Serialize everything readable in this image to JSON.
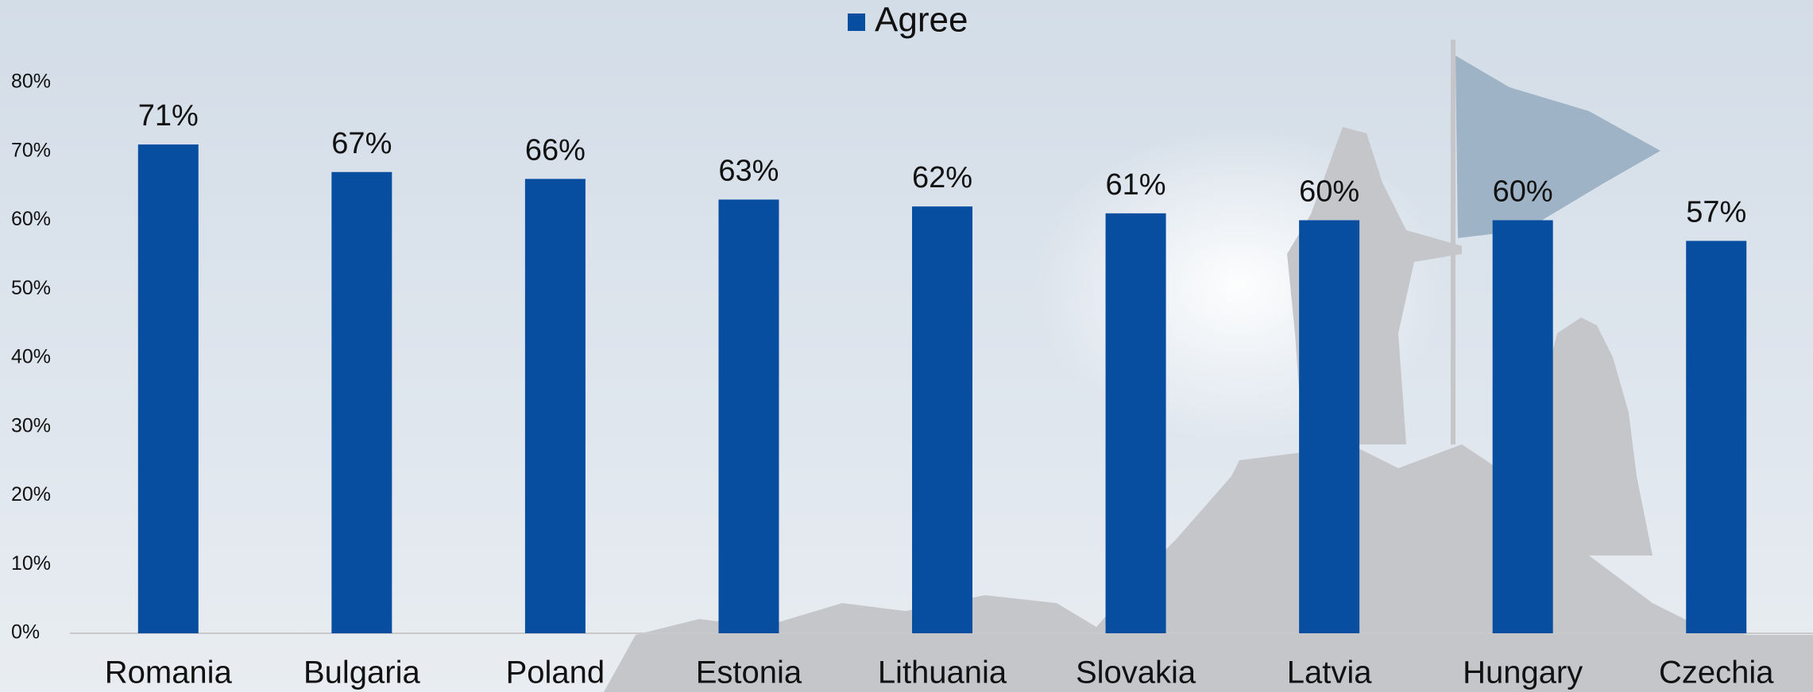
{
  "chart_data": {
    "type": "bar",
    "legend": "top",
    "categories": [
      "Romania",
      "Bulgaria",
      "Poland",
      "Estonia",
      "Lithuania",
      "Slovakia",
      "Latvia",
      "Hungary",
      "Czechia"
    ],
    "series": [
      {
        "name": "Agree",
        "color": "#074ea1",
        "values": [
          71,
          67,
          66,
          63,
          62,
          61,
          60,
          60,
          57
        ],
        "value_labels": [
          "71%",
          "67%",
          "66%",
          "63%",
          "62%",
          "61%",
          "60%",
          "60%",
          "57%"
        ]
      }
    ],
    "ylim": [
      0,
      80
    ],
    "yticks": [
      {
        "value": 0,
        "label": "0%"
      },
      {
        "value": 10,
        "label": "10%"
      },
      {
        "value": 20,
        "label": "20%"
      },
      {
        "value": 30,
        "label": "30%"
      },
      {
        "value": 40,
        "label": "40%"
      },
      {
        "value": 50,
        "label": "50%"
      },
      {
        "value": 60,
        "label": "60%"
      },
      {
        "value": 70,
        "label": "70%"
      },
      {
        "value": 80,
        "label": "80%"
      }
    ]
  }
}
